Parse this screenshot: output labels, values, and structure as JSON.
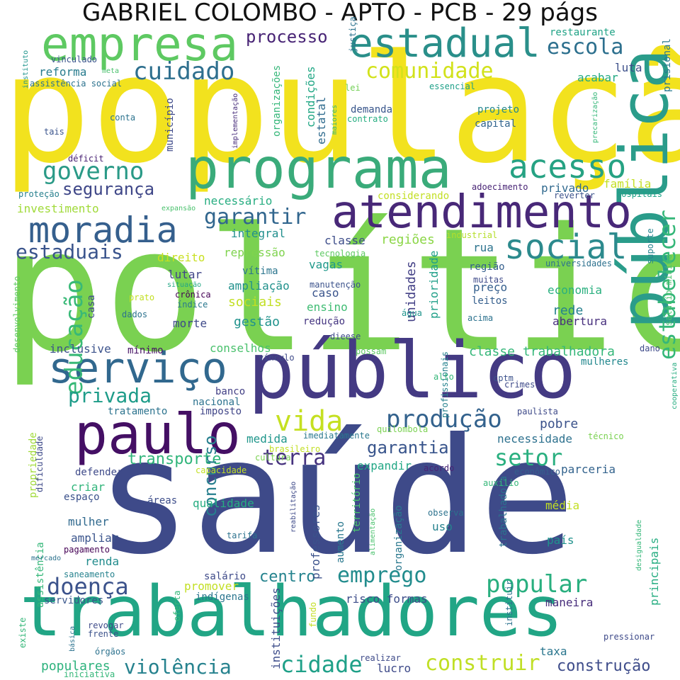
{
  "title": "GABRIEL COLOMBO - APTO - PCB - 29 págs",
  "palette": [
    "#fde725",
    "#b5de2b",
    "#6ece58",
    "#35b779",
    "#1f9e89",
    "#26828e",
    "#31688e",
    "#3e4989",
    "#482878",
    "#440154"
  ],
  "words": [
    {
      "text": "população",
      "c": "#f2e21e"
    },
    {
      "text": "política",
      "c": "#7ad151"
    },
    {
      "text": "saúde",
      "c": "#3e4a89"
    },
    {
      "text": "trabalhadores",
      "c": "#21a585"
    },
    {
      "text": "público",
      "c": "#443a83"
    },
    {
      "text": "pública",
      "c": "#2a9c8a"
    },
    {
      "text": "programa",
      "c": "#3aab7a"
    },
    {
      "text": "atendimento",
      "c": "#482878"
    },
    {
      "text": "empresa",
      "c": "#5ec962"
    },
    {
      "text": "estadual",
      "c": "#2a8f8a"
    },
    {
      "text": "paulo",
      "c": "#440f64"
    },
    {
      "text": "serviço",
      "c": "#31688e"
    },
    {
      "text": "moradia",
      "c": "#355f8d"
    },
    {
      "text": "acesso",
      "c": "#26a283"
    },
    {
      "text": "social",
      "c": "#2c8a8d"
    },
    {
      "text": "produção",
      "c": "#33628d"
    },
    {
      "text": "educação",
      "c": "#38b977"
    },
    {
      "text": "estabelecer",
      "c": "#35b779"
    },
    {
      "text": "cuidado",
      "c": "#2e6f8e"
    },
    {
      "text": "governo",
      "c": "#2a9a87"
    },
    {
      "text": "escola",
      "c": "#2d708e"
    },
    {
      "text": "comunidade",
      "c": "#d2e21b"
    },
    {
      "text": "garantir",
      "c": "#31668e"
    },
    {
      "text": "segurança",
      "c": "#3f4788"
    },
    {
      "text": "estaduais",
      "c": "#3a548c"
    },
    {
      "text": "processo",
      "c": "#482475"
    },
    {
      "text": "vida",
      "c": "#c5e021"
    },
    {
      "text": "privada",
      "c": "#1e9c89"
    },
    {
      "text": "terra",
      "c": "#46327e"
    },
    {
      "text": "setor",
      "c": "#29af7f"
    },
    {
      "text": "popular",
      "c": "#29af7f"
    },
    {
      "text": "emprego",
      "c": "#228c8d"
    },
    {
      "text": "doença",
      "c": "#3b528b"
    },
    {
      "text": "cidade",
      "c": "#1fa088"
    },
    {
      "text": "construir",
      "c": "#c0df25"
    },
    {
      "text": "violência",
      "c": "#26828e"
    },
    {
      "text": "garantia",
      "c": "#39558c"
    },
    {
      "text": "transporte",
      "c": "#31b57b"
    },
    {
      "text": "concurso",
      "c": "#277f8e"
    },
    {
      "text": "centro",
      "c": "#25838e"
    },
    {
      "text": "construção",
      "c": "#3e4c8a"
    },
    {
      "text": "populares",
      "c": "#2db27d"
    },
    {
      "text": "investimento",
      "c": "#a0da39"
    },
    {
      "text": "necessário",
      "c": "#27ad81"
    },
    {
      "text": "integral",
      "c": "#218f8d"
    },
    {
      "text": "classe",
      "c": "#3d4d8a"
    },
    {
      "text": "regiões",
      "c": "#8bd646"
    },
    {
      "text": "rua",
      "c": "#2c738e"
    },
    {
      "text": "família",
      "c": "#c2df23"
    },
    {
      "text": "privado",
      "c": "#30698e"
    },
    {
      "text": "reforma",
      "c": "#287c8e"
    },
    {
      "text": "luta",
      "c": "#3c4f8a"
    },
    {
      "text": "acabar",
      "c": "#23a983"
    },
    {
      "text": "demanda",
      "c": "#39568c"
    },
    {
      "text": "projeto",
      "c": "#24878e"
    },
    {
      "text": "capital",
      "c": "#32658e"
    },
    {
      "text": "direito",
      "c": "#c8e020"
    },
    {
      "text": "repressão",
      "c": "#7fd34e"
    },
    {
      "text": "lutar",
      "c": "#404588"
    },
    {
      "text": "vítima",
      "c": "#2b758e"
    },
    {
      "text": "ampliação",
      "c": "#21918c"
    },
    {
      "text": "sociais",
      "c": "#c2df23"
    },
    {
      "text": "gestão",
      "c": "#20928c"
    },
    {
      "text": "morte",
      "c": "#3e4989"
    },
    {
      "text": "redução",
      "c": "#453581"
    },
    {
      "text": "ensino",
      "c": "#3fbc73"
    },
    {
      "text": "caso",
      "c": "#3a548c"
    },
    {
      "text": "vagas",
      "c": "#1f998a"
    },
    {
      "text": "unidades",
      "c": "#423f85"
    },
    {
      "text": "prioridade",
      "c": "#1f9f88"
    },
    {
      "text": "região",
      "c": "#355f8d"
    },
    {
      "text": "preço",
      "c": "#355f8d"
    },
    {
      "text": "economia",
      "c": "#2ab07f"
    },
    {
      "text": "rede",
      "c": "#26818e"
    },
    {
      "text": "abertura",
      "c": "#472f7d"
    },
    {
      "text": "classe trabalhadora",
      "c": "#35b779"
    },
    {
      "text": "inclusive",
      "c": "#3b528b"
    },
    {
      "text": "mínimo",
      "c": "#471365"
    },
    {
      "text": "conselhos",
      "c": "#4ac16d"
    },
    {
      "text": "mulheres",
      "c": "#23888e"
    },
    {
      "text": "banco",
      "c": "#423f85"
    },
    {
      "text": "nacional",
      "c": "#2c728e"
    },
    {
      "text": "tratamento",
      "c": "#2c738e"
    },
    {
      "text": "imposto",
      "c": "#404588"
    },
    {
      "text": "pobre",
      "c": "#3b528b"
    },
    {
      "text": "necessidade",
      "c": "#2d718e"
    },
    {
      "text": "expandir",
      "c": "#22a785"
    },
    {
      "text": "medida",
      "c": "#1f968b"
    },
    {
      "text": "parceria",
      "c": "#33638d"
    },
    {
      "text": "defender",
      "c": "#3e4a89"
    },
    {
      "text": "criar",
      "c": "#31b57b"
    },
    {
      "text": "espaço",
      "c": "#3b518b"
    },
    {
      "text": "áreas",
      "c": "#3d4d8a"
    },
    {
      "text": "qualidade",
      "c": "#27ad81"
    },
    {
      "text": "mulher",
      "c": "#30698e"
    },
    {
      "text": "ampliar",
      "c": "#3a548c"
    },
    {
      "text": "renda",
      "c": "#228c8d"
    },
    {
      "text": "professores",
      "c": "#3b528b"
    },
    {
      "text": "aumento",
      "c": "#2a788e"
    },
    {
      "text": "território",
      "c": "#4ac16d"
    },
    {
      "text": "organização",
      "c": "#2a788e"
    },
    {
      "text": "trabalhadora",
      "c": "#2c728e"
    },
    {
      "text": "uso",
      "c": "#26828e"
    },
    {
      "text": "média",
      "c": "#c2df23"
    },
    {
      "text": "país",
      "c": "#20928c"
    },
    {
      "text": "promover",
      "c": "#c2df23"
    },
    {
      "text": "indígenas",
      "c": "#2b758e"
    },
    {
      "text": "salário",
      "c": "#3e4a89"
    },
    {
      "text": "servidores",
      "c": "#39568c"
    },
    {
      "text": "risco formas",
      "c": "#3d4d8a"
    },
    {
      "text": "maneira",
      "c": "#472d7b"
    },
    {
      "text": "principais",
      "c": "#26ad81"
    },
    {
      "text": "taxa",
      "c": "#2a768e"
    },
    {
      "text": "instituições",
      "c": "#3d4d8a"
    },
    {
      "text": "lucro",
      "c": "#3e4a89"
    },
    {
      "text": "município",
      "c": "#3e4a89"
    },
    {
      "text": "organizações",
      "c": "#35b779"
    },
    {
      "text": "condições",
      "c": "#22a785"
    },
    {
      "text": "estatal",
      "c": "#2f6b8e"
    },
    {
      "text": "restaurante",
      "c": "#20a386"
    },
    {
      "text": "prisional",
      "c": "#2a788e"
    },
    {
      "text": "justiça",
      "c": "#2c728e"
    },
    {
      "text": "instituto",
      "c": "#1f948c"
    },
    {
      "text": "vinculado",
      "c": "#3a548c"
    },
    {
      "text": "meta",
      "c": "#4ac16d"
    },
    {
      "text": "assistência social",
      "c": "#2c728e"
    },
    {
      "text": "implementação",
      "c": "#472d7b"
    },
    {
      "text": "lei",
      "c": "#73d056"
    },
    {
      "text": "essencial",
      "c": "#1fa088"
    },
    {
      "text": "maiores",
      "c": "#31b57b"
    },
    {
      "text": "contrato",
      "c": "#26ad81"
    },
    {
      "text": "precarização",
      "c": "#35b779"
    },
    {
      "text": "conta",
      "c": "#2c738e"
    },
    {
      "text": "tais",
      "c": "#3a548c"
    },
    {
      "text": "déficit",
      "c": "#482173"
    },
    {
      "text": "proteção",
      "c": "#27808e"
    },
    {
      "text": "expansão",
      "c": "#4ac16d"
    },
    {
      "text": "considerando",
      "c": "#c2df23"
    },
    {
      "text": "adoecimento",
      "c": "#482475"
    },
    {
      "text": "reverter",
      "c": "#3b528b"
    },
    {
      "text": "hospitais",
      "c": "#1fa187"
    },
    {
      "text": "industrial",
      "c": "#b5de2b"
    },
    {
      "text": "tecnologia",
      "c": "#5ec962"
    },
    {
      "text": "suporte",
      "c": "#25838e"
    },
    {
      "text": "universidades",
      "c": "#2d718e"
    },
    {
      "text": "salário mínimo",
      "c": "#4ac16d"
    },
    {
      "text": "desenvolvimento",
      "c": "#5ec962"
    },
    {
      "text": "situação",
      "c": "#22a785"
    },
    {
      "text": "crônica",
      "c": "#440154"
    },
    {
      "text": "prato",
      "c": "#c2df23"
    },
    {
      "text": "índice",
      "c": "#2a788e"
    },
    {
      "text": "dados",
      "c": "#2c728e"
    },
    {
      "text": "casa",
      "c": "#3e4a89"
    },
    {
      "text": "manutenção",
      "c": "#3b528b"
    },
    {
      "text": "muitas",
      "c": "#3e4a89"
    },
    {
      "text": "leitos",
      "c": "#355f8d"
    },
    {
      "text": "água",
      "c": "#1f948c"
    },
    {
      "text": "acima",
      "c": "#2c728e"
    },
    {
      "text": "dieese",
      "c": "#3e4a89"
    },
    {
      "text": "possam",
      "c": "#5ec962"
    },
    {
      "text": "vínculo",
      "c": "#3e4a89"
    },
    {
      "text": "profissionais",
      "c": "#26828e"
    },
    {
      "text": "alto",
      "c": "#35b779"
    },
    {
      "text": "cptm",
      "c": "#3b528b"
    },
    {
      "text": "dano",
      "c": "#3e4a89"
    },
    {
      "text": "cooperativa",
      "c": "#27ad81"
    },
    {
      "text": "crimes",
      "c": "#3e4a89"
    },
    {
      "text": "paulista",
      "c": "#3e4a89"
    },
    {
      "text": "técnico",
      "c": "#7ad151"
    },
    {
      "text": "quilombola",
      "c": "#7ad151"
    },
    {
      "text": "imediatamente",
      "c": "#2a788e"
    },
    {
      "text": "brasileiro",
      "c": "#c2df23"
    },
    {
      "text": "cultura",
      "c": "#7ad151"
    },
    {
      "text": "capacidade",
      "c": "#c2df23"
    },
    {
      "text": "acordo",
      "c": "#482475"
    },
    {
      "text": "econômico",
      "c": "#355f8d"
    },
    {
      "text": "propriedade",
      "c": "#a0da39"
    },
    {
      "text": "dificuldade",
      "c": "#3e4a89"
    },
    {
      "text": "reabilitação",
      "c": "#3e4a89"
    },
    {
      "text": "alimentação",
      "c": "#4ac16d"
    },
    {
      "text": "auxílio",
      "c": "#35b779"
    },
    {
      "text": "observa",
      "c": "#2c728e"
    },
    {
      "text": "assistência",
      "c": "#35b779"
    },
    {
      "text": "pagamento",
      "c": "#440154"
    },
    {
      "text": "mercado",
      "c": "#2c728e"
    },
    {
      "text": "saneamento",
      "c": "#26828e"
    },
    {
      "text": "tarifa",
      "c": "#2c728e"
    },
    {
      "text": "desigualdade",
      "c": "#35b779"
    },
    {
      "text": "oferta",
      "c": "#35b779"
    },
    {
      "text": "fundo",
      "c": "#c2df23"
    },
    {
      "text": "instituir",
      "c": "#2c728e"
    },
    {
      "text": "revogar",
      "c": "#3e4a89"
    },
    {
      "text": "frente",
      "c": "#3b528b"
    },
    {
      "text": "básica",
      "c": "#2c728e"
    },
    {
      "text": "órgãos",
      "c": "#2c728e"
    },
    {
      "text": "existe",
      "c": "#35b779"
    },
    {
      "text": "iniciativa",
      "c": "#35b779"
    },
    {
      "text": "realizar",
      "c": "#3e4a89"
    },
    {
      "text": "pressionar",
      "c": "#3e4a89"
    }
  ]
}
